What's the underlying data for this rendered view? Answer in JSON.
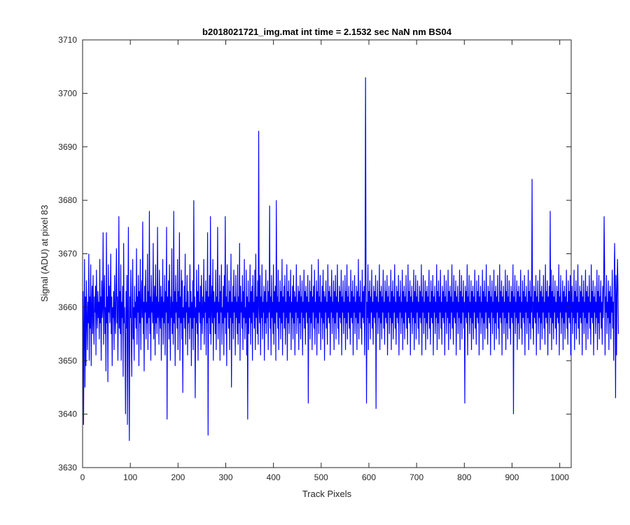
{
  "chart_data": {
    "type": "line",
    "title": "b2018021721_img.mat int time = 2.1532 sec  NaN nm BS04",
    "xlabel": "Track Pixels",
    "ylabel": "Signal (ADU) at pixel 83",
    "xlim": [
      0,
      1024
    ],
    "ylim": [
      3630,
      3710
    ],
    "xticks": [
      0,
      100,
      200,
      300,
      400,
      500,
      600,
      700,
      800,
      900,
      1000
    ],
    "yticks": [
      3630,
      3640,
      3650,
      3660,
      3670,
      3680,
      3690,
      3700,
      3710
    ],
    "grid": false,
    "line_color": "#0000ff",
    "series": [
      {
        "x_start": 1,
        "x_step": 1,
        "values": [
          3663,
          3638,
          3655,
          3669,
          3645,
          3662,
          3649,
          3665,
          3658,
          3652,
          3661,
          3657,
          3670,
          3650,
          3662,
          3656,
          3668,
          3649,
          3660,
          3664,
          3655,
          3666,
          3658,
          3653,
          3662,
          3659,
          3664,
          3651,
          3667,
          3660,
          3656,
          3663,
          3658,
          3661,
          3654,
          3669,
          3657,
          3662,
          3650,
          3665,
          3658,
          3660,
          3674,
          3653,
          3662,
          3666,
          3655,
          3660,
          3648,
          3674,
          3657,
          3662,
          3646,
          3668,
          3659,
          3664,
          3657,
          3661,
          3670,
          3655,
          3662,
          3649,
          3660,
          3658,
          3663,
          3652,
          3666,
          3659,
          3655,
          3664,
          3671,
          3657,
          3662,
          3650,
          3660,
          3677,
          3656,
          3663,
          3655,
          3668,
          3650,
          3661,
          3658,
          3664,
          3647,
          3672,
          3657,
          3660,
          3653,
          3640,
          3663,
          3656,
          3666,
          3638,
          3659,
          3675,
          3652,
          3635,
          3662,
          3658,
          3667,
          3655,
          3647,
          3661,
          3669,
          3654,
          3660,
          3650,
          3664,
          3658,
          3661,
          3656,
          3671,
          3653,
          3662,
          3659,
          3666,
          3649,
          3663,
          3657,
          3669,
          3652,
          3660,
          3665,
          3658,
          3676,
          3655,
          3661,
          3648,
          3664,
          3659,
          3667,
          3654,
          3661,
          3657,
          3670,
          3652,
          3663,
          3658,
          3678,
          3655,
          3662,
          3650,
          3666,
          3659,
          3661,
          3657,
          3672,
          3654,
          3660,
          3664,
          3651,
          3668,
          3657,
          3662,
          3655,
          3675,
          3658,
          3661,
          3653,
          3667,
          3659,
          3656,
          3664,
          3650,
          3662,
          3658,
          3669,
          3653,
          3661,
          3657,
          3666,
          3651,
          3663,
          3659,
          3675,
          3639,
          3662,
          3657,
          3665,
          3654,
          3668,
          3660,
          3650,
          3662,
          3658,
          3671,
          3655,
          3661,
          3653,
          3678,
          3657,
          3663,
          3649,
          3666,
          3659,
          3661,
          3656,
          3669,
          3652,
          3663,
          3658,
          3674,
          3650,
          3662,
          3657,
          3667,
          3654,
          3665,
          3644,
          3660,
          3658,
          3664,
          3656,
          3670,
          3653,
          3661,
          3659,
          3666,
          3651,
          3663,
          3657,
          3660,
          3654,
          3668,
          3658,
          3663,
          3649,
          3661,
          3656,
          3665,
          3652,
          3680,
          3658,
          3662,
          3643,
          3660,
          3657,
          3667,
          3655,
          3663,
          3650,
          3668,
          3659,
          3661,
          3657,
          3664,
          3652,
          3666,
          3660,
          3655,
          3662,
          3658,
          3669,
          3653,
          3661,
          3659,
          3665,
          3651,
          3663,
          3657,
          3674,
          3636,
          3662,
          3658,
          3666,
          3655,
          3677,
          3653,
          3660,
          3664,
          3657,
          3669,
          3650,
          3663,
          3658,
          3661,
          3655,
          3667,
          3652,
          3662,
          3659,
          3675,
          3654,
          3661,
          3657,
          3666,
          3650,
          3663,
          3659,
          3668,
          3653,
          3660,
          3657,
          3664,
          3651,
          3666,
          3658,
          3677,
          3655,
          3662,
          3649,
          3668,
          3659,
          3661,
          3656,
          3665,
          3652,
          3663,
          3658,
          3670,
          3645,
          3661,
          3657,
          3664,
          3654,
          3667,
          3659,
          3662,
          3651,
          3666,
          3658,
          3661,
          3655,
          3668,
          3653,
          3662,
          3657,
          3672,
          3650,
          3664,
          3659,
          3661,
          3656,
          3666,
          3652,
          3663,
          3658,
          3669,
          3654,
          3660,
          3657,
          3667,
          3651,
          3662,
          3639,
          3665,
          3655,
          3661,
          3658,
          3668,
          3653,
          3663,
          3657,
          3664,
          3650,
          3666,
          3659,
          3661,
          3656,
          3667,
          3652,
          3670,
          3658,
          3662,
          3655,
          3665,
          3653,
          3693,
          3660,
          3657,
          3666,
          3651,
          3662,
          3658,
          3668,
          3654,
          3661,
          3659,
          3664,
          3650,
          3663,
          3657,
          3667,
          3655,
          3661,
          3658,
          3665,
          3652,
          3663,
          3659,
          3679,
          3656,
          3662,
          3651,
          3666,
          3658,
          3661,
          3655,
          3668,
          3653,
          3663,
          3657,
          3664,
          3650,
          3680,
          3659,
          3662,
          3656,
          3667,
          3652,
          3661,
          3658,
          3665,
          3654,
          3663,
          3657,
          3669,
          3651,
          3662,
          3659,
          3664,
          3656,
          3666,
          3653,
          3661,
          3658,
          3668,
          3650,
          3663,
          3657,
          3665,
          3655,
          3662,
          3659,
          3667,
          3652,
          3661,
          3658,
          3664,
          3654,
          3666,
          3657,
          3663,
          3651,
          3662,
          3659,
          3668,
          3655,
          3661,
          3658,
          3664,
          3652,
          3663,
          3657,
          3666,
          3654,
          3662,
          3659,
          3665,
          3651,
          3661,
          3658,
          3667,
          3656,
          3663,
          3653,
          3664,
          3659,
          3662,
          3657,
          3666,
          3642,
          3661,
          3658,
          3665,
          3654,
          3663,
          3657,
          3668,
          3652,
          3662,
          3659,
          3664,
          3656,
          3667,
          3653,
          3661,
          3658,
          3665,
          3651,
          3663,
          3657,
          3669,
          3655,
          3662,
          3659,
          3666,
          3652,
          3661,
          3658,
          3664,
          3654,
          3667,
          3657,
          3663,
          3650,
          3662,
          3659,
          3665,
          3656,
          3661,
          3653,
          3668,
          3658,
          3663,
          3657,
          3664,
          3651,
          3662,
          3659,
          3667,
          3655,
          3661,
          3658,
          3665,
          3652,
          3663,
          3657,
          3666,
          3654,
          3662,
          3659,
          3668,
          3656,
          3661,
          3653,
          3664,
          3658,
          3663,
          3657,
          3667,
          3651,
          3662,
          3659,
          3665,
          3655,
          3661,
          3658,
          3666,
          3652,
          3663,
          3657,
          3668,
          3654,
          3662,
          3659,
          3664,
          3656,
          3661,
          3653,
          3667,
          3658,
          3663,
          3657,
          3665,
          3651,
          3662,
          3659,
          3666,
          3655,
          3661,
          3658,
          3664,
          3652,
          3663,
          3657,
          3669,
          3654,
          3662,
          3659,
          3665,
          3656,
          3661,
          3653,
          3667,
          3658,
          3663,
          3657,
          3664,
          3651,
          3662,
          3703,
          3666,
          3642,
          3661,
          3658,
          3668,
          3652,
          3663,
          3657,
          3665,
          3654,
          3662,
          3659,
          3667,
          3656,
          3661,
          3653,
          3664,
          3658,
          3663,
          3657,
          3666,
          3641,
          3662,
          3659,
          3665,
          3655,
          3661,
          3658,
          3668,
          3652,
          3663,
          3657,
          3664,
          3654,
          3662,
          3659,
          3667,
          3656,
          3661,
          3653,
          3665,
          3658,
          3663,
          3657,
          3666,
          3651,
          3662,
          3659,
          3664,
          3655,
          3661,
          3658,
          3667,
          3652,
          3663,
          3657,
          3665,
          3654,
          3662,
          3659,
          3668,
          3656,
          3661,
          3653,
          3664,
          3658,
          3663,
          3657,
          3666,
          3651,
          3662,
          3659,
          3665,
          3655,
          3661,
          3658,
          3667,
          3652,
          3663,
          3657,
          3664,
          3654,
          3662,
          3659,
          3666,
          3656,
          3661,
          3653,
          3668,
          3658,
          3663,
          3657,
          3665,
          3651,
          3662,
          3659,
          3664,
          3655,
          3661,
          3658,
          3667,
          3652,
          3663,
          3657,
          3666,
          3654,
          3662,
          3659,
          3665,
          3656,
          3661,
          3653,
          3664,
          3658,
          3663,
          3657,
          3668,
          3651,
          3662,
          3659,
          3666,
          3655,
          3661,
          3658,
          3665,
          3652,
          3663,
          3657,
          3664,
          3654,
          3662,
          3659,
          3667,
          3656,
          3661,
          3653,
          3665,
          3658,
          3663,
          3657,
          3666,
          3651,
          3662,
          3659,
          3664,
          3655,
          3661,
          3658,
          3668,
          3652,
          3663,
          3657,
          3665,
          3654,
          3662,
          3659,
          3667,
          3656,
          3661,
          3653,
          3664,
          3658,
          3663,
          3657,
          3666,
          3651,
          3662,
          3659,
          3665,
          3655,
          3661,
          3658,
          3667,
          3652,
          3663,
          3657,
          3664,
          3654,
          3662,
          3659,
          3668,
          3656,
          3661,
          3653,
          3666,
          3658,
          3663,
          3657,
          3665,
          3651,
          3662,
          3659,
          3664,
          3655,
          3661,
          3658,
          3667,
          3652,
          3663,
          3657,
          3666,
          3654,
          3662,
          3659,
          3665,
          3656,
          3661,
          3642,
          3664,
          3658,
          3663,
          3657,
          3668,
          3651,
          3662,
          3659,
          3666,
          3655,
          3661,
          3658,
          3665,
          3652,
          3663,
          3657,
          3664,
          3654,
          3662,
          3659,
          3667,
          3656,
          3661,
          3653,
          3665,
          3658,
          3663,
          3657,
          3666,
          3651,
          3662,
          3659,
          3664,
          3655,
          3661,
          3658,
          3667,
          3652,
          3663,
          3657,
          3665,
          3654,
          3662,
          3659,
          3668,
          3656,
          3661,
          3653,
          3664,
          3658,
          3663,
          3657,
          3666,
          3651,
          3662,
          3659,
          3665,
          3655,
          3661,
          3658,
          3667,
          3652,
          3663,
          3657,
          3664,
          3654,
          3662,
          3659,
          3666,
          3656,
          3661,
          3653,
          3668,
          3658,
          3663,
          3657,
          3665,
          3651,
          3662,
          3659,
          3664,
          3655,
          3661,
          3658,
          3667,
          3652,
          3663,
          3657,
          3666,
          3654,
          3662,
          3659,
          3665,
          3656,
          3661,
          3653,
          3664,
          3658,
          3663,
          3657,
          3668,
          3640,
          3662,
          3659,
          3666,
          3655,
          3661,
          3658,
          3665,
          3652,
          3663,
          3657,
          3664,
          3654,
          3662,
          3659,
          3667,
          3656,
          3661,
          3653,
          3665,
          3658,
          3663,
          3657,
          3666,
          3651,
          3662,
          3659,
          3664,
          3655,
          3661,
          3658,
          3667,
          3652,
          3663,
          3657,
          3665,
          3654,
          3662,
          3659,
          3684,
          3656,
          3661,
          3653,
          3664,
          3658,
          3663,
          3657,
          3666,
          3651,
          3662,
          3659,
          3665,
          3655,
          3661,
          3658,
          3667,
          3652,
          3663,
          3657,
          3664,
          3654,
          3662,
          3659,
          3666,
          3656,
          3661,
          3653,
          3668,
          3658,
          3663,
          3657,
          3665,
          3651,
          3662,
          3659,
          3664,
          3655,
          3678,
          3658,
          3667,
          3652,
          3663,
          3657,
          3666,
          3654,
          3662,
          3659,
          3665,
          3656,
          3661,
          3653,
          3664,
          3658,
          3663,
          3657,
          3668,
          3651,
          3662,
          3659,
          3666,
          3655,
          3661,
          3658,
          3665,
          3652,
          3663,
          3657,
          3664,
          3654,
          3662,
          3659,
          3667,
          3656,
          3661,
          3653,
          3665,
          3658,
          3663,
          3657,
          3666,
          3651,
          3662,
          3659,
          3664,
          3655,
          3661,
          3658,
          3667,
          3652,
          3663,
          3657,
          3665,
          3654,
          3662,
          3659,
          3668,
          3656,
          3661,
          3653,
          3664,
          3658,
          3663,
          3657,
          3666,
          3651,
          3662,
          3659,
          3665,
          3655,
          3661,
          3658,
          3667,
          3652,
          3663,
          3657,
          3664,
          3654,
          3662,
          3659,
          3666,
          3656,
          3661,
          3653,
          3668,
          3658,
          3663,
          3657,
          3665,
          3651,
          3662,
          3659,
          3664,
          3655,
          3661,
          3658,
          3667,
          3652,
          3663,
          3657,
          3666,
          3654,
          3662,
          3659,
          3665,
          3656,
          3661,
          3653,
          3664,
          3658,
          3663,
          3677,
          3668,
          3651,
          3662,
          3659,
          3666,
          3655,
          3661,
          3658,
          3665,
          3652,
          3663,
          3657,
          3664,
          3654,
          3662,
          3659,
          3667,
          3656,
          3661,
          3650,
          3665,
          3672,
          3663,
          3643,
          3666,
          3651,
          3662,
          3669,
          3664,
          3655
        ]
      }
    ]
  }
}
